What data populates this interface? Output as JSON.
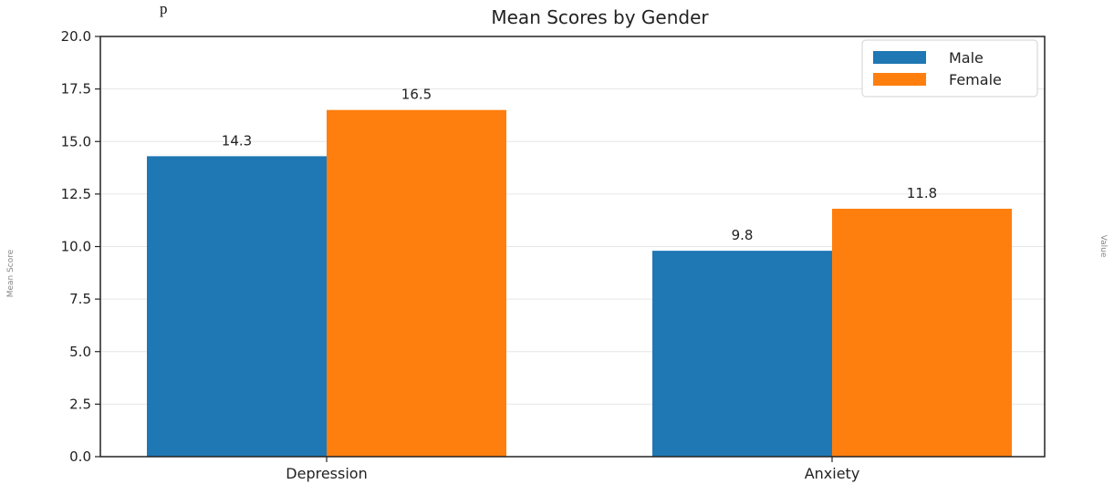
{
  "caption": "p",
  "side_labels": {
    "left": "Mean Score",
    "right": "Value"
  },
  "colors": {
    "Male": "#1f77b4",
    "Female": "#ff7f0e"
  },
  "chart_data": {
    "type": "bar",
    "title": "Mean Scores by Gender",
    "categories": [
      "Depression",
      "Anxiety"
    ],
    "series": [
      {
        "name": "Male",
        "values": [
          14.3,
          9.8
        ],
        "labels": [
          "14.3",
          "9.8"
        ]
      },
      {
        "name": "Female",
        "values": [
          16.5,
          11.8
        ],
        "labels": [
          "16.5",
          "11.8"
        ]
      }
    ],
    "ylim": [
      0,
      20
    ],
    "yticks": [
      "0.0",
      "2.5",
      "5.0",
      "7.5",
      "10.0",
      "12.5",
      "15.0",
      "17.5",
      "20.0"
    ],
    "grid": true,
    "legend": "top-right"
  }
}
